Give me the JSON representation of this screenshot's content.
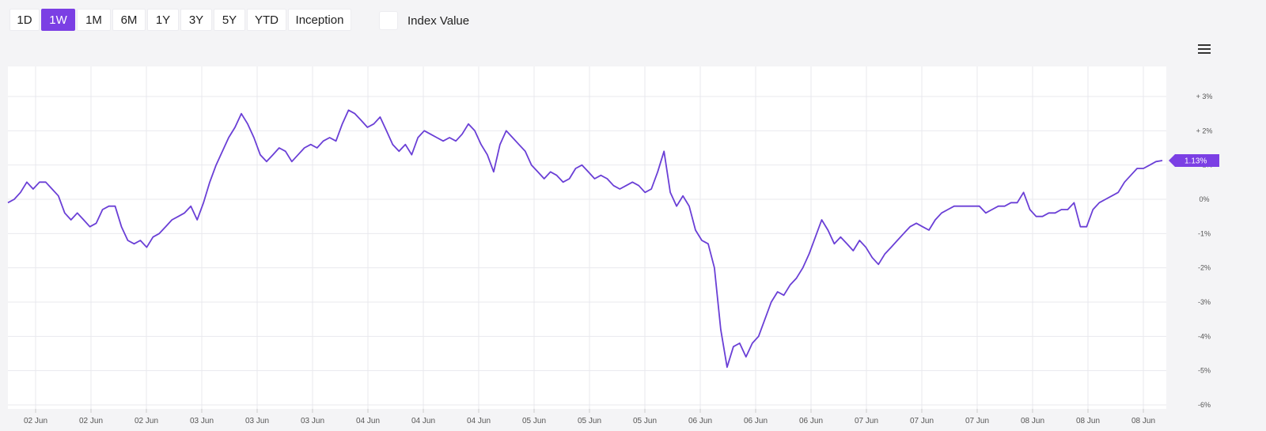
{
  "toolbar": {
    "ranges": [
      "1D",
      "1W",
      "1M",
      "6M",
      "1Y",
      "3Y",
      "5Y",
      "YTD",
      "Inception"
    ],
    "active": "1W",
    "index_value_label": "Index Value"
  },
  "colors": {
    "accent": "#7b3fe4",
    "line": "#6a3fd6",
    "grid": "#e9e9ee"
  },
  "icons": {
    "menu": "hamburger-menu-icon"
  },
  "chart_data": {
    "type": "line",
    "title": "",
    "xlabel": "",
    "ylabel": "",
    "ylim": [
      -6,
      3.5
    ],
    "grid": true,
    "y_ticks": [
      3,
      2,
      1,
      0,
      -1,
      -2,
      -3,
      -4,
      -5,
      -6
    ],
    "y_tick_labels": [
      "+ 3%",
      "+ 2%",
      "+ 1%",
      "0%",
      "-1%",
      "-2%",
      "-3%",
      "-4%",
      "-5%",
      "-6%"
    ],
    "x_tick_labels": [
      "02 Jun",
      "02 Jun",
      "02 Jun",
      "03 Jun",
      "03 Jun",
      "03 Jun",
      "04 Jun",
      "04 Jun",
      "04 Jun",
      "05 Jun",
      "05 Jun",
      "05 Jun",
      "06 Jun",
      "06 Jun",
      "06 Jun",
      "07 Jun",
      "07 Jun",
      "07 Jun",
      "08 Jun",
      "08 Jun",
      "08 Jun"
    ],
    "last_value_label": "1.13%",
    "series": [
      {
        "values": [
          -0.1,
          0,
          0.2,
          0.5,
          0.3,
          0.5,
          0.5,
          0.3,
          0.1,
          -0.4,
          -0.6,
          -0.4,
          -0.6,
          -0.8,
          -0.7,
          -0.3,
          -0.2,
          -0.2,
          -0.8,
          -1.2,
          -1.3,
          -1.2,
          -1.4,
          -1.1,
          -1.0,
          -0.8,
          -0.6,
          -0.5,
          -0.4,
          -0.2,
          -0.6,
          -0.1,
          0.5,
          1.0,
          1.4,
          1.8,
          2.1,
          2.5,
          2.2,
          1.8,
          1.3,
          1.1,
          1.3,
          1.5,
          1.4,
          1.1,
          1.3,
          1.5,
          1.6,
          1.5,
          1.7,
          1.8,
          1.7,
          2.2,
          2.6,
          2.5,
          2.3,
          2.1,
          2.2,
          2.4,
          2.0,
          1.6,
          1.4,
          1.6,
          1.3,
          1.8,
          2.0,
          1.9,
          1.8,
          1.7,
          1.8,
          1.7,
          1.9,
          2.2,
          2.0,
          1.6,
          1.3,
          0.8,
          1.6,
          2.0,
          1.8,
          1.6,
          1.4,
          1.0,
          0.8,
          0.6,
          0.8,
          0.7,
          0.5,
          0.6,
          0.9,
          1.0,
          0.8,
          0.6,
          0.7,
          0.6,
          0.4,
          0.3,
          0.4,
          0.5,
          0.4,
          0.2,
          0.3,
          0.8,
          1.4,
          0.2,
          -0.2,
          0.1,
          -0.2,
          -0.9,
          -1.2,
          -1.3,
          -2.0,
          -3.8,
          -4.9,
          -4.3,
          -4.2,
          -4.6,
          -4.2,
          -4.0,
          -3.5,
          -3.0,
          -2.7,
          -2.8,
          -2.5,
          -2.3,
          -2.0,
          -1.6,
          -1.1,
          -0.6,
          -0.9,
          -1.3,
          -1.1,
          -1.3,
          -1.5,
          -1.2,
          -1.4,
          -1.7,
          -1.9,
          -1.6,
          -1.4,
          -1.2,
          -1.0,
          -0.8,
          -0.7,
          -0.8,
          -0.9,
          -0.6,
          -0.4,
          -0.3,
          -0.2,
          -0.2,
          -0.2,
          -0.2,
          -0.2,
          -0.4,
          -0.3,
          -0.2,
          -0.2,
          -0.1,
          -0.1,
          0.2,
          -0.3,
          -0.5,
          -0.5,
          -0.4,
          -0.4,
          -0.3,
          -0.3,
          -0.1,
          -0.8,
          -0.8,
          -0.3,
          -0.1,
          0.0,
          0.1,
          0.2,
          0.5,
          0.7,
          0.9,
          0.9,
          1.0,
          1.1,
          1.13
        ]
      }
    ]
  }
}
